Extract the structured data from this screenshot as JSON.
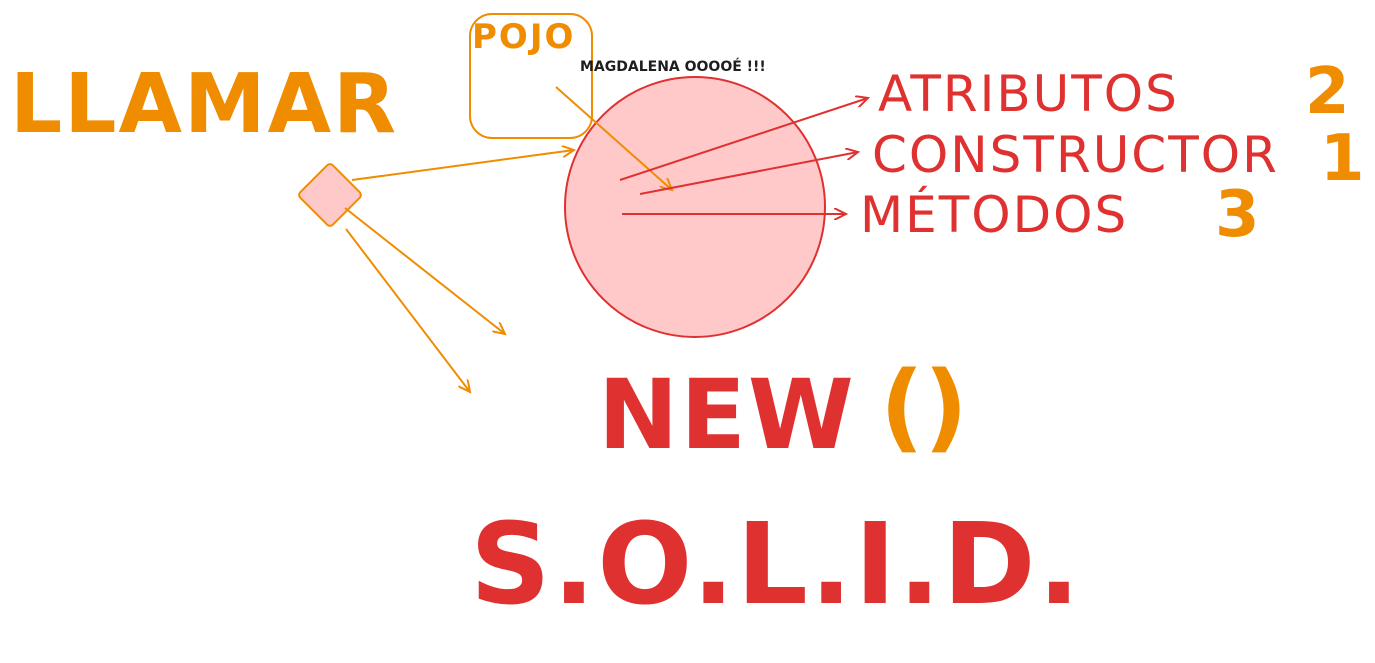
{
  "labels": {
    "llamar": "LLAMAR",
    "pojo": "POJO",
    "magdalena": "MAGDALENA OOOOÉ !!!",
    "atributos": "ATRIBUTOS",
    "atributos_num": "2",
    "constructor": "CONSTRUCTOR",
    "constructor_num": "1",
    "metodos": "MÉTODOS",
    "metodos_num": "3",
    "new": "NEW",
    "parens": "()",
    "solid": "S.O.L.I.D."
  },
  "colors": {
    "red": "#e03131",
    "orange": "#f08c00",
    "circle_fill": "#ffc9c9",
    "dark": "#1e1e1e"
  }
}
